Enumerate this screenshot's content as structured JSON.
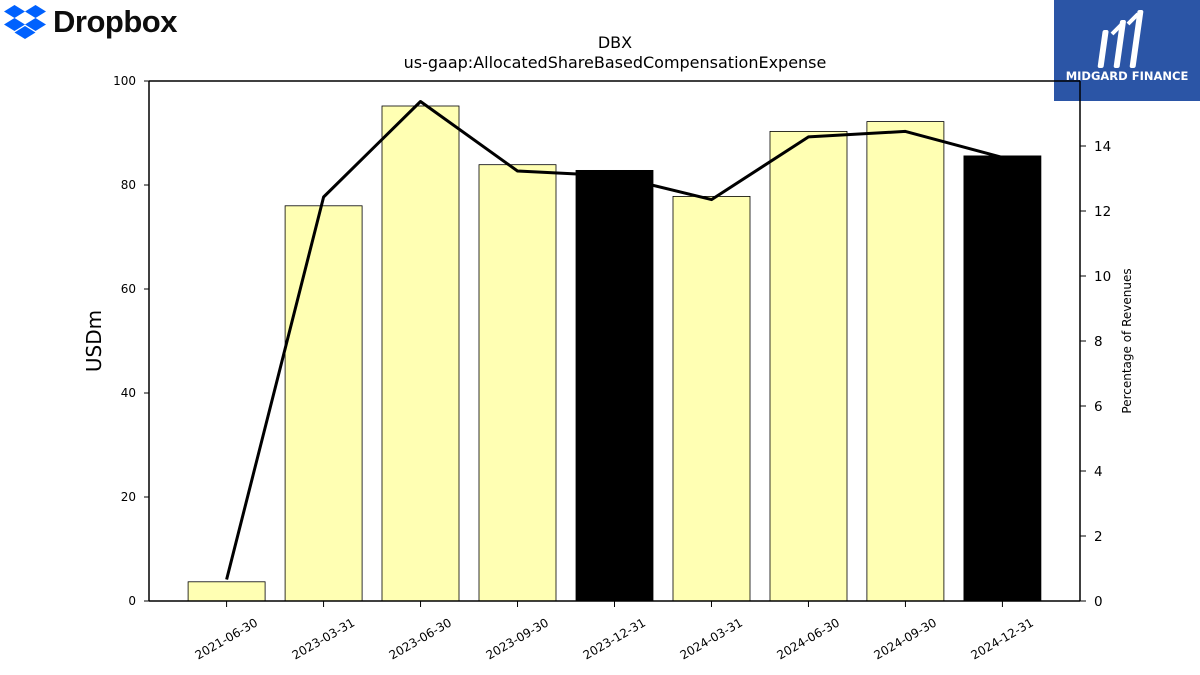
{
  "logos": {
    "left": {
      "text": "Dropbox",
      "icon": "dropbox-icon",
      "color": "#0061fe"
    },
    "right": {
      "text": "MIDGARD FINANCE",
      "icon": "midgard-finance-icon",
      "color": "#2b55a6"
    }
  },
  "chart_data": {
    "type": "bar",
    "title": "DBX",
    "subtitle": "us-gaap:AllocatedShareBasedCompensationExpense",
    "ylabel": "USDm",
    "ylabel_right": "Percentage of Revenues",
    "categories": [
      "2021-06-30",
      "2023-03-31",
      "2023-06-30",
      "2023-09-30",
      "2023-12-31",
      "2024-03-31",
      "2024-06-30",
      "2024-09-30",
      "2024-12-31"
    ],
    "series": [
      {
        "type": "bar",
        "axis": "left",
        "values": [
          3.7,
          76.0,
          95.2,
          83.9,
          82.8,
          77.8,
          90.3,
          92.2,
          85.6
        ],
        "colors": [
          "#ffffb3",
          "#ffffb3",
          "#ffffb3",
          "#ffffb3",
          "#000000",
          "#ffffb3",
          "#ffffb3",
          "#ffffb3",
          "#000000"
        ]
      },
      {
        "type": "line",
        "axis": "right",
        "color": "#000000",
        "values": [
          0.66,
          12.43,
          15.37,
          13.23,
          13.08,
          12.35,
          14.28,
          14.45,
          13.65
        ]
      }
    ],
    "ylim": [
      0,
      100
    ],
    "yticks": [
      0,
      20,
      40,
      60,
      80,
      100
    ],
    "ylim_right": [
      0,
      16
    ],
    "yticks_right": [
      0,
      2,
      4,
      6,
      8,
      10,
      12,
      14
    ],
    "grid": false,
    "legend": "none"
  }
}
